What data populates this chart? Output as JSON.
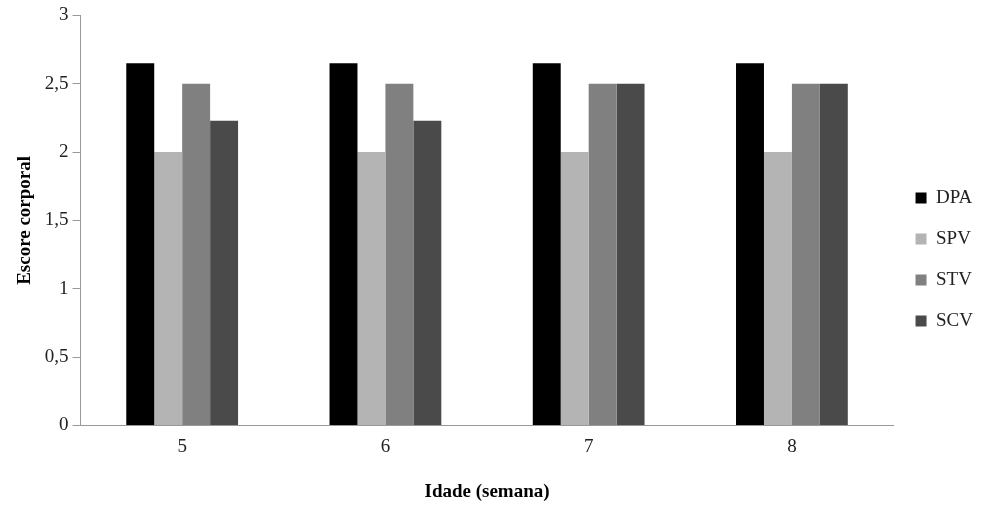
{
  "chart_data": {
    "type": "bar",
    "xlabel": "Idade (semana)",
    "ylabel": "Escore corporal",
    "categories": [
      "5",
      "6",
      "7",
      "8"
    ],
    "series": [
      {
        "name": "DPA",
        "color": "#000000",
        "values": [
          2.65,
          2.65,
          2.65,
          2.65
        ]
      },
      {
        "name": "SPV",
        "color": "#b4b4b4",
        "values": [
          2,
          2,
          2,
          2
        ]
      },
      {
        "name": "STV",
        "color": "#808080",
        "values": [
          2.5,
          2.5,
          2.5,
          2.5
        ]
      },
      {
        "name": "SCV",
        "color": "#4a4a4a",
        "values": [
          2.23,
          2.23,
          2.5,
          2.5
        ]
      }
    ],
    "ylim": [
      0,
      3
    ],
    "yticks": [
      0,
      {
        "value": 0.5,
        "label": "0,5"
      },
      1,
      {
        "value": 1.5,
        "label": "1,5"
      },
      2,
      {
        "value": 2.5,
        "label": "2,5"
      },
      3
    ],
    "grid": false,
    "legend": "right"
  }
}
